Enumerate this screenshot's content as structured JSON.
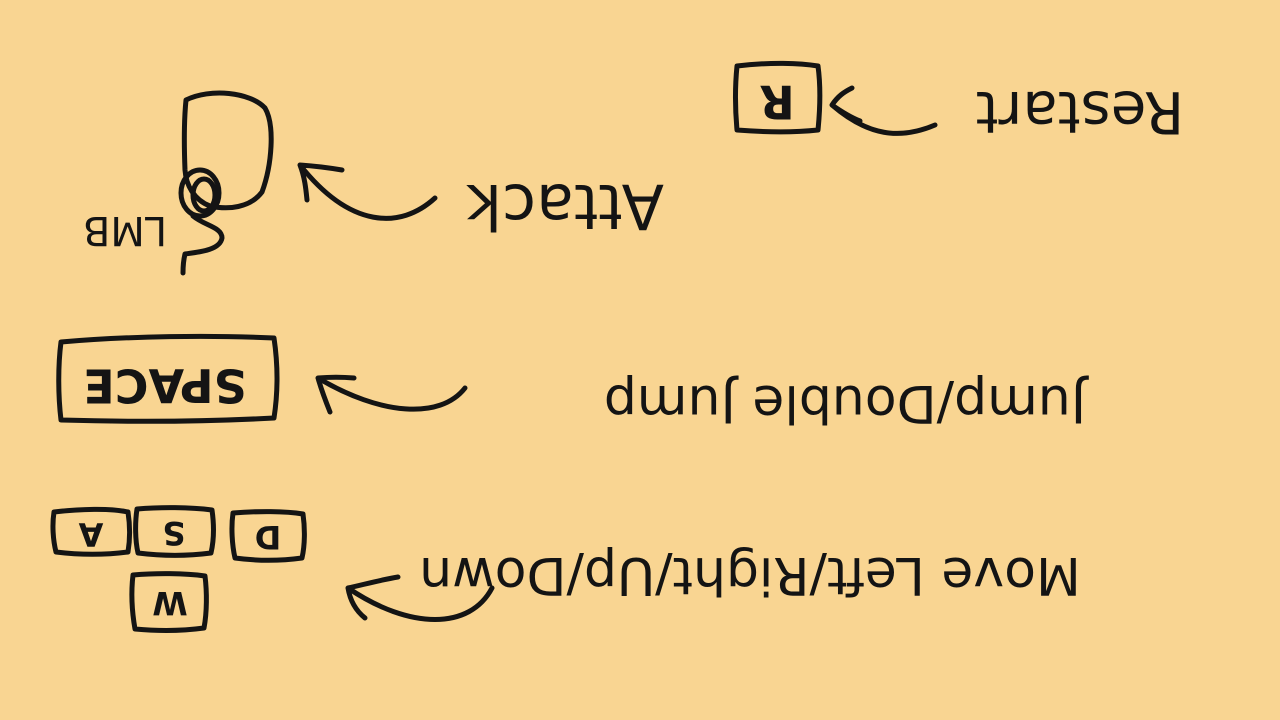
{
  "controls": {
    "restart": {
      "key": "R",
      "label": "Restart"
    },
    "attack": {
      "key": "LMB",
      "label": "Attack"
    },
    "jump": {
      "key": "SPACE",
      "label": "Jump/Double Jump"
    },
    "move": {
      "keys": [
        "A",
        "S",
        "D",
        "W"
      ],
      "label": "Move Left/Right/Up/Down"
    }
  }
}
